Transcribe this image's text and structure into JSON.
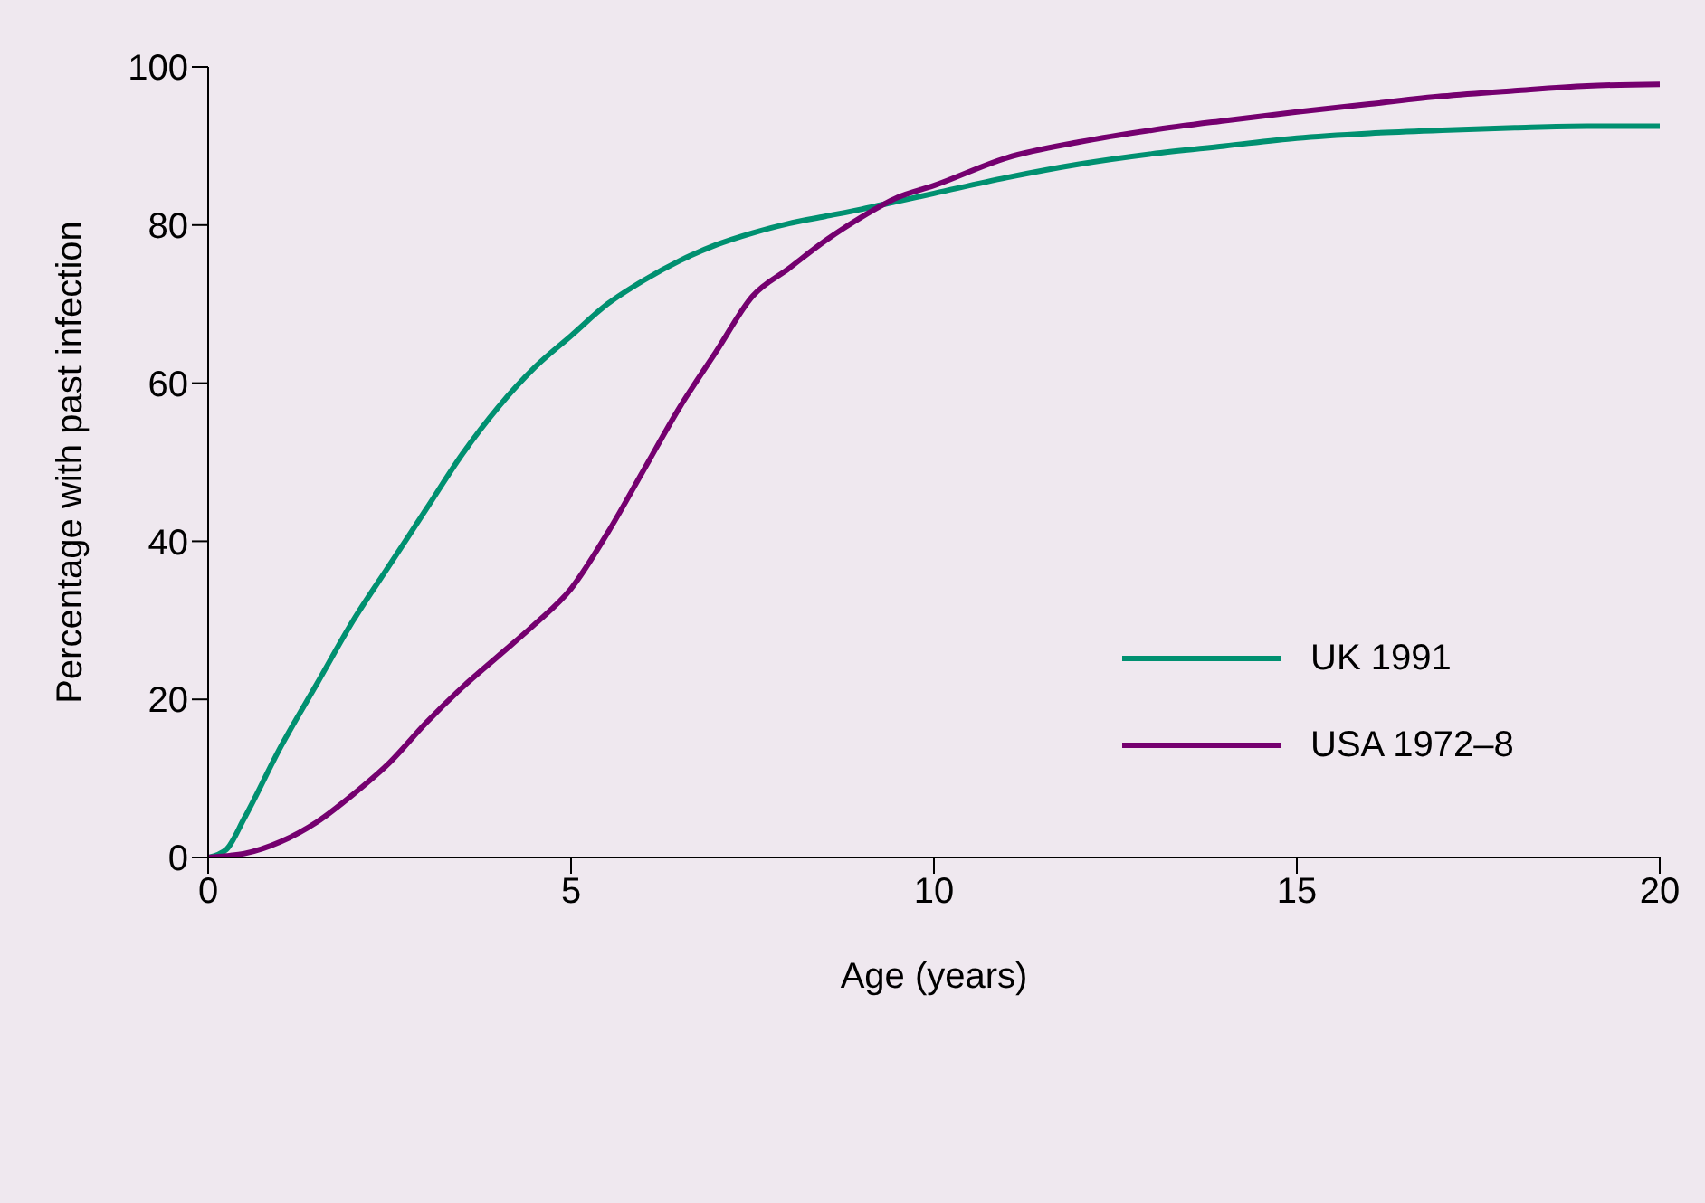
{
  "chart_data": {
    "type": "line",
    "xlabel": "Age (years)",
    "ylabel": "Percentage with past infection",
    "xlim": [
      0,
      20
    ],
    "xticks": [
      0,
      5,
      10,
      15,
      20
    ],
    "ylim": [
      0,
      100
    ],
    "yticks": [
      0,
      20,
      40,
      60,
      80,
      100
    ],
    "grid": false,
    "legend": "right",
    "marker": "none",
    "line_style": "solid",
    "x": [
      0,
      0.25,
      0.5,
      1,
      1.5,
      2,
      2.5,
      3,
      3.5,
      4,
      4.5,
      5,
      5.5,
      6,
      6.5,
      7,
      7.5,
      8,
      8.5,
      9,
      9.5,
      10,
      11,
      12,
      13,
      14,
      15,
      16,
      17,
      18,
      19,
      20
    ],
    "series": [
      {
        "name": "UK 1991",
        "color": "#009070",
        "values": [
          0,
          1,
          5,
          14,
          22,
          30,
          37,
          44,
          51,
          57,
          62,
          66,
          70,
          73,
          75.5,
          77.5,
          79,
          80.2,
          81.1,
          82,
          83,
          84,
          86,
          87.7,
          89,
          90,
          91,
          91.6,
          92,
          92.3,
          92.5,
          92.5
        ]
      },
      {
        "name": "USA 1972–8",
        "color": "#75006f",
        "values": [
          0,
          0.2,
          0.5,
          2,
          4.5,
          8,
          12,
          17,
          21.5,
          25.5,
          29.5,
          34,
          41,
          49,
          57,
          64,
          71,
          74.5,
          78,
          81,
          83.5,
          85,
          88.5,
          90.5,
          92,
          93.2,
          94.3,
          95.3,
          96.3,
          97,
          97.6,
          97.8
        ]
      }
    ]
  }
}
